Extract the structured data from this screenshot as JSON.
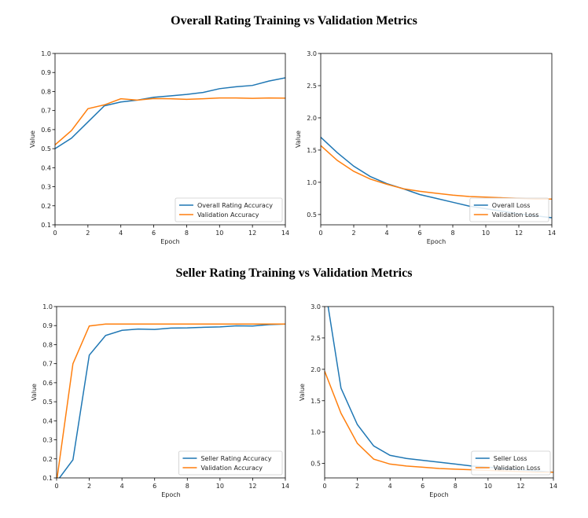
{
  "sections": [
    {
      "title": "Overall Rating Training vs Validation Metrics"
    },
    {
      "title": "Seller Rating Training vs Validation Metrics"
    }
  ],
  "chart_data": [
    {
      "type": "line",
      "xlabel": "Epoch",
      "ylabel": "Value",
      "xlim": [
        0,
        14
      ],
      "ylim": [
        0.1,
        1.0
      ],
      "xticks": [
        0,
        2,
        4,
        6,
        8,
        10,
        12,
        14
      ],
      "yticks": [
        0.1,
        0.2,
        0.3,
        0.4,
        0.5,
        0.6,
        0.7,
        0.8,
        0.9,
        1.0
      ],
      "ytick_labels": [
        "0.1",
        "0.2",
        "0.3",
        "0.4",
        "0.5",
        "0.6",
        "0.7",
        "0.8",
        "0.9",
        "1.0"
      ],
      "legend": "lower-right",
      "x": [
        0,
        1,
        2,
        3,
        4,
        5,
        6,
        7,
        8,
        9,
        10,
        11,
        12,
        13,
        14
      ],
      "series": [
        {
          "name": "Overall Rating Accuracy",
          "color": "#1f77b4",
          "values": [
            0.5,
            0.555,
            0.64,
            0.725,
            0.745,
            0.755,
            0.77,
            0.777,
            0.785,
            0.795,
            0.815,
            0.825,
            0.832,
            0.855,
            0.872
          ]
        },
        {
          "name": "Validation Accuracy",
          "color": "#ff7f0e",
          "values": [
            0.52,
            0.595,
            0.71,
            0.73,
            0.762,
            0.755,
            0.763,
            0.762,
            0.759,
            0.762,
            0.766,
            0.766,
            0.764,
            0.766,
            0.765
          ]
        }
      ]
    },
    {
      "type": "line",
      "xlabel": "Epoch",
      "ylabel": "Value",
      "xlim": [
        0,
        14
      ],
      "ylim": [
        0.34,
        3.0
      ],
      "xticks": [
        0,
        2,
        4,
        6,
        8,
        10,
        12,
        14
      ],
      "yticks": [
        0.5,
        1.0,
        1.5,
        2.0,
        2.5,
        3.0
      ],
      "ytick_labels": [
        "0.5",
        "1.0",
        "1.5",
        "2.0",
        "2.5",
        "3.0"
      ],
      "legend": "lower-right",
      "x": [
        0,
        1,
        2,
        3,
        4,
        5,
        6,
        7,
        8,
        9,
        10,
        11,
        12,
        13,
        14
      ],
      "series": [
        {
          "name": "Overall Loss",
          "color": "#1f77b4",
          "values": [
            1.7,
            1.46,
            1.25,
            1.09,
            0.98,
            0.9,
            0.81,
            0.75,
            0.69,
            0.63,
            0.59,
            0.55,
            0.51,
            0.48,
            0.45
          ]
        },
        {
          "name": "Validation Loss",
          "color": "#ff7f0e",
          "values": [
            1.57,
            1.34,
            1.17,
            1.05,
            0.97,
            0.9,
            0.86,
            0.83,
            0.8,
            0.78,
            0.77,
            0.76,
            0.75,
            0.74,
            0.74
          ]
        }
      ]
    },
    {
      "type": "line",
      "xlabel": "Epoch",
      "ylabel": "Value",
      "xlim": [
        0,
        14
      ],
      "ylim": [
        0.1,
        1.0
      ],
      "xticks": [
        0,
        2,
        4,
        6,
        8,
        10,
        12,
        14
      ],
      "yticks": [
        0.1,
        0.2,
        0.3,
        0.4,
        0.5,
        0.6,
        0.7,
        0.8,
        0.9,
        1.0
      ],
      "ytick_labels": [
        "0.1",
        "0.2",
        "0.3",
        "0.4",
        "0.5",
        "0.6",
        "0.7",
        "0.8",
        "0.9",
        "1.0"
      ],
      "legend": "lower-right",
      "x": [
        0,
        1,
        2,
        3,
        4,
        5,
        6,
        7,
        8,
        9,
        10,
        11,
        12,
        13,
        14
      ],
      "series": [
        {
          "name": "Seller Rating Accuracy",
          "color": "#1f77b4",
          "values": [
            0.08,
            0.195,
            0.745,
            0.848,
            0.875,
            0.882,
            0.88,
            0.887,
            0.888,
            0.891,
            0.893,
            0.899,
            0.898,
            0.905,
            0.908
          ]
        },
        {
          "name": "Validation Accuracy",
          "color": "#ff7f0e",
          "values": [
            0.08,
            0.7,
            0.898,
            0.908,
            0.908,
            0.908,
            0.908,
            0.908,
            0.908,
            0.908,
            0.908,
            0.908,
            0.908,
            0.908,
            0.908
          ]
        }
      ]
    },
    {
      "type": "line",
      "xlabel": "Epoch",
      "ylabel": "Value",
      "xlim": [
        0,
        14
      ],
      "ylim": [
        0.27,
        3.0
      ],
      "xticks": [
        0,
        2,
        4,
        6,
        8,
        10,
        12,
        14
      ],
      "yticks": [
        0.5,
        1.0,
        1.5,
        2.0,
        2.5,
        3.0
      ],
      "ytick_labels": [
        "0.5",
        "1.0",
        "1.5",
        "2.0",
        "2.5",
        "3.0"
      ],
      "legend": "lower-right",
      "x": [
        0,
        1,
        2,
        3,
        4,
        5,
        6,
        7,
        8,
        9,
        10,
        11,
        12,
        13,
        14
      ],
      "series": [
        {
          "name": "Seller Loss",
          "color": "#1f77b4",
          "values": [
            3.35,
            1.7,
            1.12,
            0.78,
            0.63,
            0.58,
            0.55,
            0.52,
            0.49,
            0.46,
            0.44,
            0.42,
            0.4,
            0.38,
            0.36
          ]
        },
        {
          "name": "Validation Loss",
          "color": "#ff7f0e",
          "values": [
            1.97,
            1.3,
            0.82,
            0.57,
            0.49,
            0.46,
            0.44,
            0.42,
            0.41,
            0.4,
            0.39,
            0.38,
            0.37,
            0.36,
            0.36
          ]
        }
      ]
    }
  ]
}
